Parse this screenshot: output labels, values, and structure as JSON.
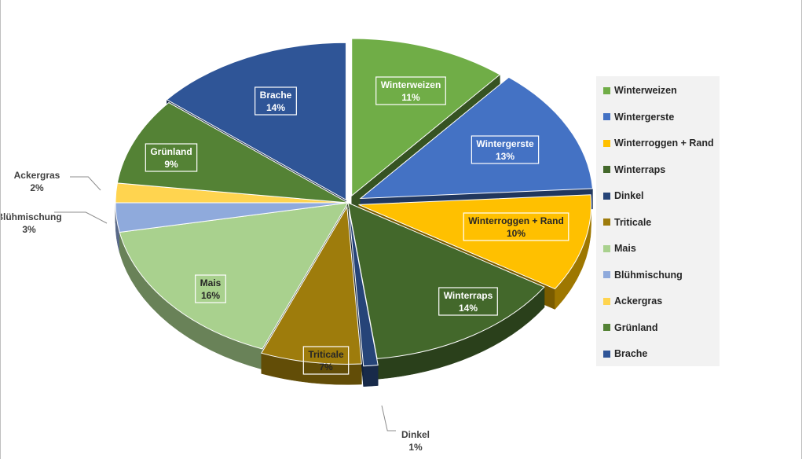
{
  "chart_data": {
    "type": "pie",
    "title": "",
    "legend_position": "right",
    "slices": [
      {
        "name": "Winterweizen",
        "value": 11,
        "color": "#70ad47"
      },
      {
        "name": "Wintergerste",
        "value": 13,
        "color": "#4472c4"
      },
      {
        "name": "Winterroggen + Rand",
        "value": 10,
        "color": "#ffc000"
      },
      {
        "name": "Winterraps",
        "value": 14,
        "color": "#43682b"
      },
      {
        "name": "Dinkel",
        "value": 1,
        "color": "#264478"
      },
      {
        "name": "Triticale",
        "value": 7,
        "color": "#9e7c0c"
      },
      {
        "name": "Mais",
        "value": 16,
        "color": "#a9d18e"
      },
      {
        "name": "Blühmischung",
        "value": 3,
        "color": "#8faadc"
      },
      {
        "name": "Ackergras",
        "value": 2,
        "color": "#ffd44f"
      },
      {
        "name": "Grünland",
        "value": 9,
        "color": "#548235"
      },
      {
        "name": "Brache",
        "value": 14,
        "color": "#2f5597"
      }
    ],
    "data_labels": [
      {
        "name": "Winterweizen",
        "pct": "11%"
      },
      {
        "name": "Wintergerste",
        "pct": "13%"
      },
      {
        "name": "Winterroggen + Rand",
        "pct": "10%"
      },
      {
        "name": "Winterraps",
        "pct": "14%"
      },
      {
        "name": "Dinkel",
        "pct": "1%"
      },
      {
        "name": "Triticale",
        "pct": "7%"
      },
      {
        "name": "Mais",
        "pct": "16%"
      },
      {
        "name": "Blühmischung",
        "pct": "3%"
      },
      {
        "name": "Ackergras",
        "pct": "2%"
      },
      {
        "name": "Grünland",
        "pct": "9%"
      },
      {
        "name": "Brache",
        "pct": "14%"
      }
    ]
  }
}
